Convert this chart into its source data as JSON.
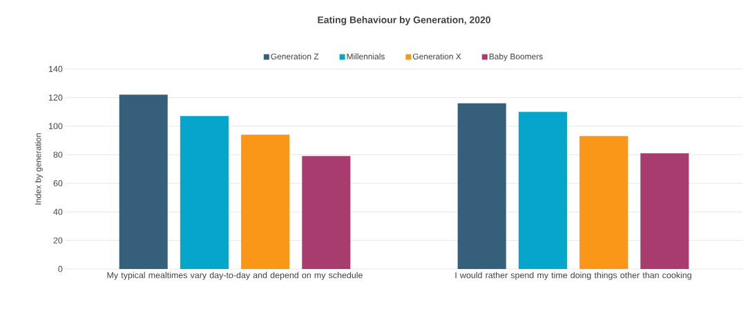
{
  "chart_data": {
    "type": "bar",
    "title": "Eating Behaviour by Generation, 2020",
    "ylabel": "Index by generation",
    "categories": [
      "My typical mealtimes vary day-to-day and depend on my schedule",
      "I would rather spend my time doing things other than cooking"
    ],
    "series": [
      {
        "name": "Generation Z",
        "color": "#355f7a",
        "values": [
          122,
          116
        ]
      },
      {
        "name": "Millennials",
        "color": "#06a5cc",
        "values": [
          107,
          110
        ]
      },
      {
        "name": "Generation X",
        "color": "#fb9718",
        "values": [
          94,
          93
        ]
      },
      {
        "name": "Baby Boomers",
        "color": "#a93c6f",
        "values": [
          79,
          81
        ]
      }
    ],
    "ylim": [
      0,
      140
    ],
    "yticks": [
      0,
      20,
      40,
      60,
      80,
      100,
      120,
      140
    ],
    "grid": "y",
    "legend": "top"
  }
}
